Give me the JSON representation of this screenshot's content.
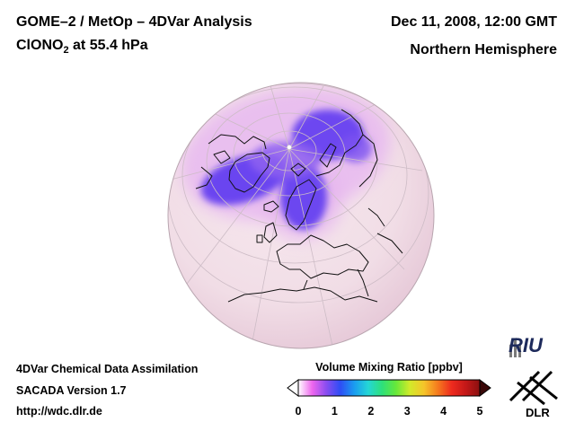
{
  "header": {
    "title_line1": "GOME–2 / MetOp – 4DVar Analysis",
    "species": "ClONO",
    "species_sub": "2",
    "level_suffix": " at 55.4 hPa",
    "date": "Dec 11, 2008, 12:00 GMT",
    "region": "Northern Hemisphere"
  },
  "footer": {
    "line1": "4DVar Chemical Data Assimilation",
    "line2": "SACADA Version 1.7",
    "line3": "http://wdc.dlr.de"
  },
  "colorbar": {
    "title": "Volume Mixing Ratio [ppbv]",
    "ticks": [
      "0",
      "1",
      "2",
      "3",
      "4",
      "5"
    ],
    "colors": [
      "#ffffff",
      "#ee66ee",
      "#8a4df0",
      "#2e4df5",
      "#1a9cf0",
      "#24d6d6",
      "#2ee07a",
      "#66e83a",
      "#d2ea2a",
      "#f5c52a",
      "#f57a1e",
      "#ee2a1e",
      "#c41818",
      "#8a1010"
    ]
  },
  "logos": {
    "riu": "RIU",
    "dlr": "DLR"
  },
  "map": {
    "projection": "orthographic",
    "field_background": "#f3e2ea",
    "low_value_color": "#6a3ef0"
  }
}
